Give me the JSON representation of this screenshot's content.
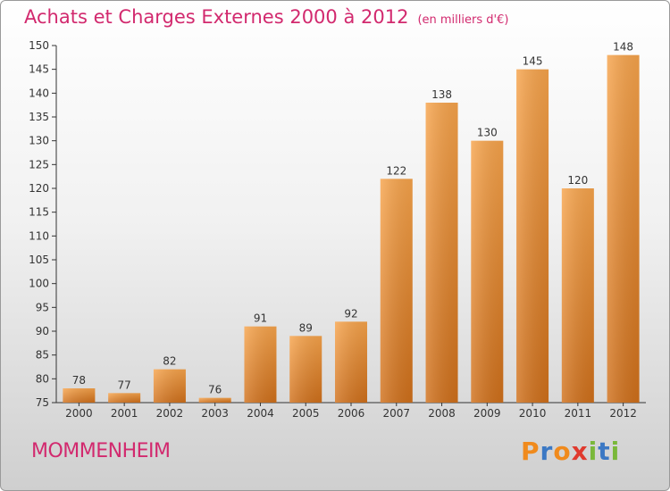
{
  "chart_data": {
    "type": "bar",
    "title": "Achats et Charges Externes 2000 à 2012",
    "unit_note": "(en milliers d'€)",
    "categories": [
      "2000",
      "2001",
      "2002",
      "2003",
      "2004",
      "2005",
      "2006",
      "2007",
      "2008",
      "2009",
      "2010",
      "2011",
      "2012"
    ],
    "values": [
      78,
      77,
      82,
      76,
      91,
      89,
      92,
      122,
      138,
      130,
      145,
      120,
      148
    ],
    "ylim": [
      75,
      150
    ],
    "yticks": [
      75,
      80,
      85,
      90,
      95,
      100,
      105,
      110,
      115,
      120,
      125,
      130,
      135,
      140,
      145,
      150
    ],
    "xlabel": "",
    "ylabel": "",
    "grid": false,
    "legend": "none",
    "colors": {
      "bar_light": "#f7a44c",
      "bar_dark": "#d0701b",
      "title": "#d2296e",
      "axis": "#333333"
    }
  },
  "location": "MOMMENHEIM",
  "brand": {
    "letters": [
      "P",
      "r",
      "o",
      "x",
      "i",
      "t",
      "i"
    ],
    "colors": [
      "#f08a1c",
      "#3b78c4",
      "#f08a1c",
      "#e03a2e",
      "#7ab83a",
      "#3b78c4",
      "#7ab83a"
    ]
  }
}
